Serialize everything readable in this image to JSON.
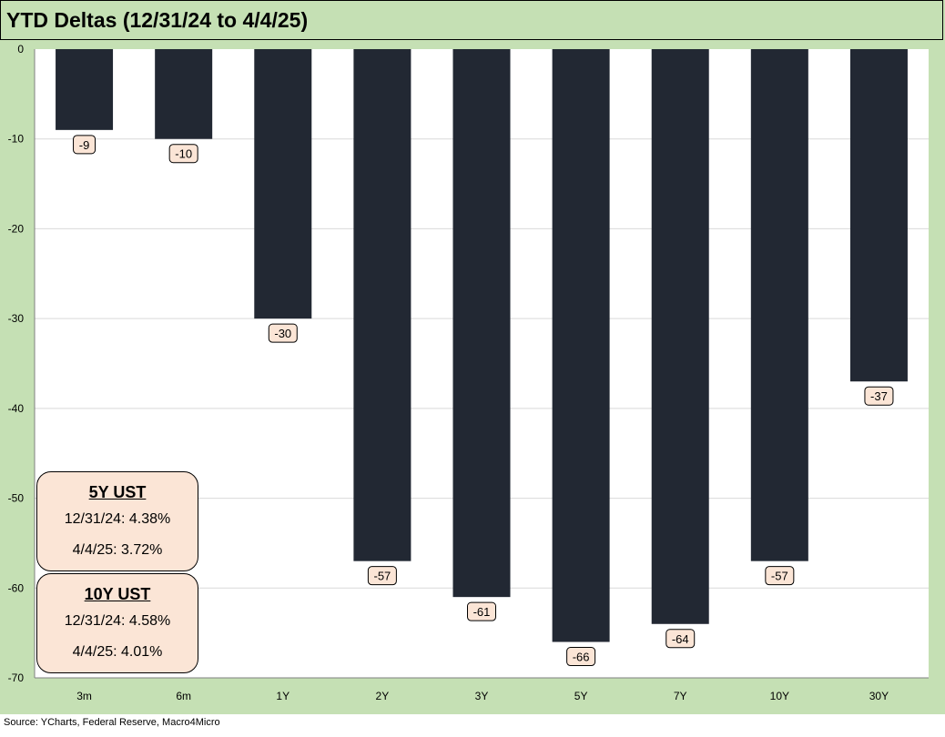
{
  "colors": {
    "frame": "#c5e0b4",
    "plot_background": "#ffffff",
    "bar": "#222833",
    "label_box": "#fbe5d6",
    "gridline": "#d9d9d9"
  },
  "chart_data": {
    "type": "bar",
    "title": "YTD Deltas (12/31/24 to 4/4/25)",
    "categories": [
      "3m",
      "6m",
      "1Y",
      "2Y",
      "3Y",
      "5Y",
      "7Y",
      "10Y",
      "30Y"
    ],
    "values": [
      -9,
      -10,
      -30,
      -57,
      -61,
      -66,
      -64,
      -57,
      -37
    ],
    "ylim": [
      -70,
      0
    ],
    "yticks": [
      0,
      -10,
      -20,
      -30,
      -40,
      -50,
      -60,
      -70
    ],
    "grid": true,
    "data_labels": true
  },
  "callouts": [
    {
      "title": "5Y UST",
      "line1": "12/31/24: 4.38%",
      "line2": "4/4/25: 3.72%"
    },
    {
      "title": "10Y UST",
      "line1": "12/31/24: 4.58%",
      "line2": "4/4/25: 4.01%"
    }
  ],
  "source": "Source: YCharts, Federal Reserve, Macro4Micro"
}
